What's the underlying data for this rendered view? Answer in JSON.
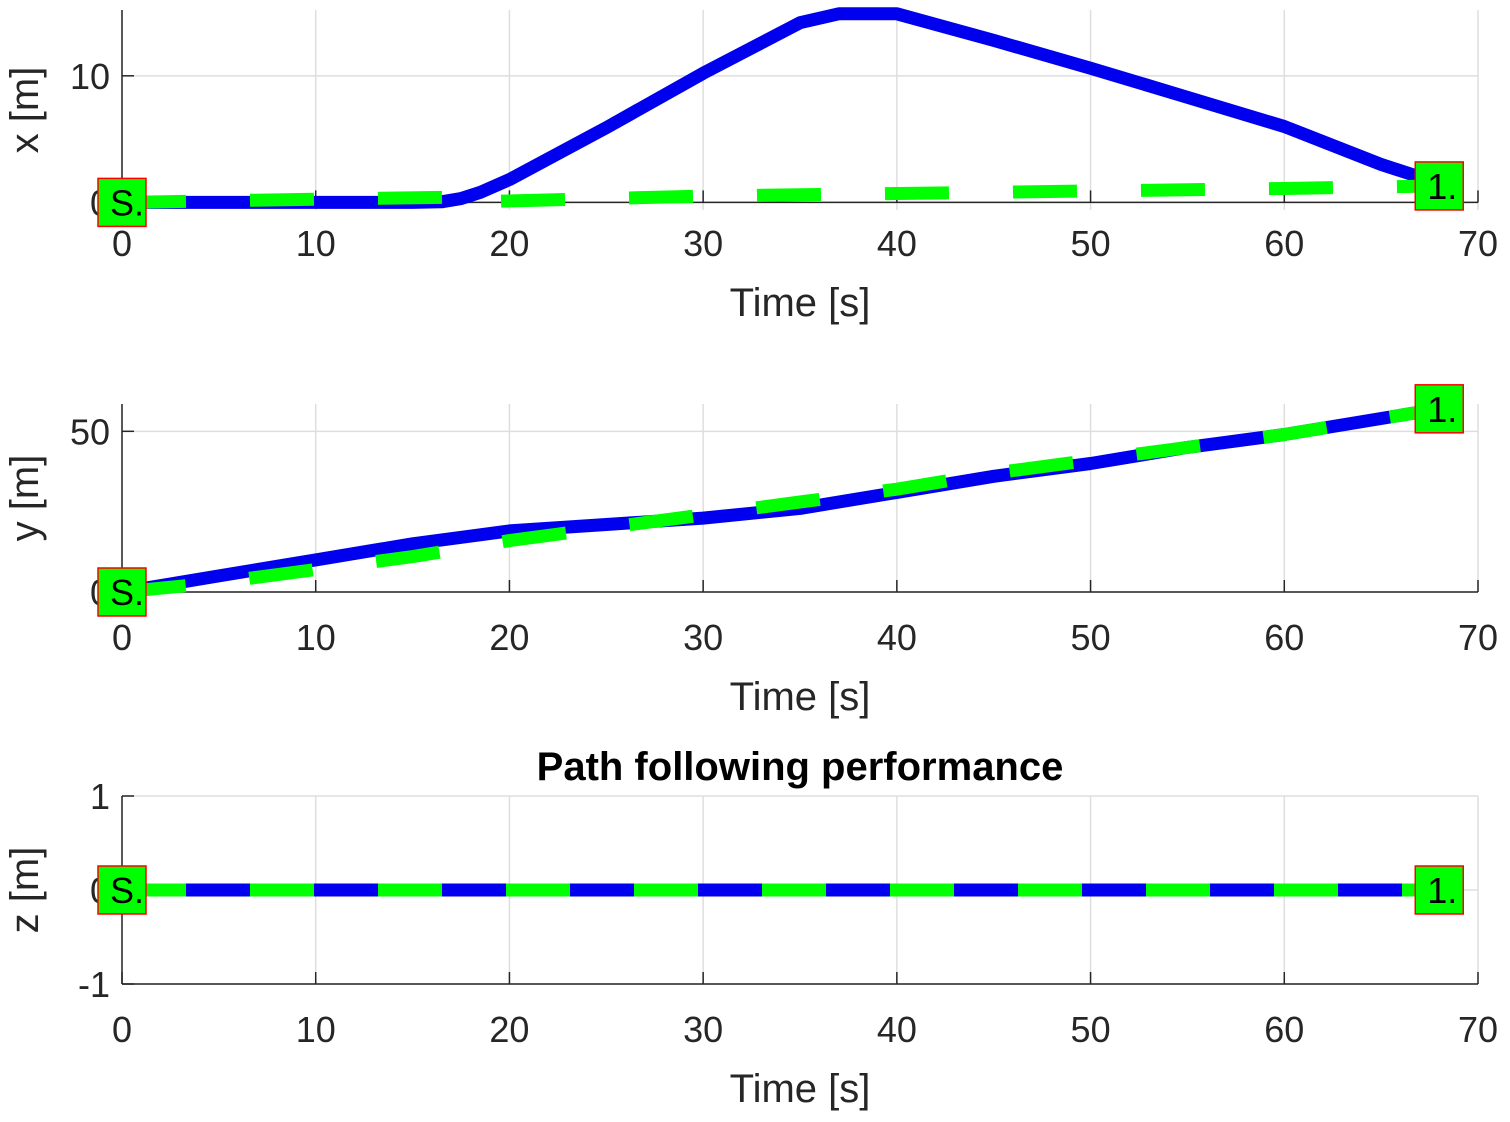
{
  "colors": {
    "actual": "#0000ee",
    "reference": "#00ff00",
    "marker_fill": "#00ff00",
    "marker_border": "#ff0000",
    "grid": "#dedede",
    "axis": "#262626"
  },
  "chart_data": [
    {
      "type": "line",
      "id": "x",
      "xlabel": "Time [s]",
      "ylabel": "x [m]",
      "title": "",
      "xlim": [
        0,
        70
      ],
      "ylim": [
        -0.6,
        15.2
      ],
      "xticks": [
        0,
        10,
        20,
        30,
        40,
        50,
        60,
        70
      ],
      "yticks": [
        0,
        10
      ],
      "ytick_labels": [
        "0",
        "10"
      ],
      "grid": true,
      "series": [
        {
          "style": "solid-blue",
          "x": [
            0,
            5,
            10,
            15,
            16.5,
            17.5,
            18.5,
            20,
            25,
            30,
            35,
            37,
            40,
            45,
            50,
            55,
            60,
            65,
            68
          ],
          "y": [
            0,
            0,
            0,
            0,
            0.05,
            0.3,
            0.8,
            1.8,
            5.9,
            10.2,
            14.2,
            14.9,
            14.9,
            12.8,
            10.6,
            8.3,
            6.0,
            3.0,
            1.5
          ]
        },
        {
          "style": "dashed-green",
          "x": [
            0,
            10,
            17,
            17.01,
            30,
            40,
            50,
            60,
            68
          ],
          "y": [
            0,
            0.25,
            0.4,
            0,
            0.5,
            0.7,
            0.9,
            1.1,
            1.3
          ]
        }
      ],
      "markers": [
        {
          "x": 0,
          "y": 0,
          "label": "S."
        },
        {
          "x": 68,
          "y": 1.3,
          "label": "1."
        }
      ]
    },
    {
      "type": "line",
      "id": "y",
      "xlabel": "Time [s]",
      "ylabel": "y [m]",
      "title": "",
      "xlim": [
        0,
        70
      ],
      "ylim": [
        0,
        58.5
      ],
      "xticks": [
        0,
        10,
        20,
        30,
        40,
        50,
        60,
        70
      ],
      "yticks": [
        0,
        50
      ],
      "ytick_labels": [
        "0",
        "50"
      ],
      "grid": true,
      "series": [
        {
          "style": "solid-blue",
          "x": [
            0,
            5,
            10,
            15,
            20,
            25,
            30,
            35,
            40,
            45,
            50,
            55,
            60,
            65,
            68
          ],
          "y": [
            0,
            5,
            10,
            15,
            19,
            21,
            23,
            26,
            31,
            36,
            40,
            45,
            49,
            54,
            57
          ]
        },
        {
          "style": "dashed-green",
          "x": [
            0,
            5,
            10,
            15,
            20,
            25,
            30,
            35,
            40,
            45,
            50,
            55,
            60,
            65,
            68
          ],
          "y": [
            0,
            3,
            7,
            11,
            16,
            20,
            24,
            28,
            32,
            37,
            41,
            45,
            49,
            54,
            57
          ]
        }
      ],
      "markers": [
        {
          "x": 0,
          "y": 0,
          "label": "S."
        },
        {
          "x": 68,
          "y": 57,
          "label": "1."
        }
      ]
    },
    {
      "type": "line",
      "id": "z",
      "xlabel": "Time [s]",
      "ylabel": "z [m]",
      "title": "Path following performance",
      "xlim": [
        0,
        70
      ],
      "ylim": [
        -1,
        1
      ],
      "xticks": [
        0,
        10,
        20,
        30,
        40,
        50,
        60,
        70
      ],
      "yticks": [
        -1,
        0,
        1
      ],
      "ytick_labels": [
        "-1",
        "0",
        "1"
      ],
      "grid": true,
      "series": [
        {
          "style": "solid-blue",
          "x": [
            0,
            68
          ],
          "y": [
            0,
            0
          ]
        },
        {
          "style": "dashed-green",
          "x": [
            0,
            68
          ],
          "y": [
            0,
            0
          ]
        }
      ],
      "markers": [
        {
          "x": 0,
          "y": 0,
          "label": "S."
        },
        {
          "x": 68,
          "y": 0,
          "label": "1."
        }
      ]
    }
  ]
}
